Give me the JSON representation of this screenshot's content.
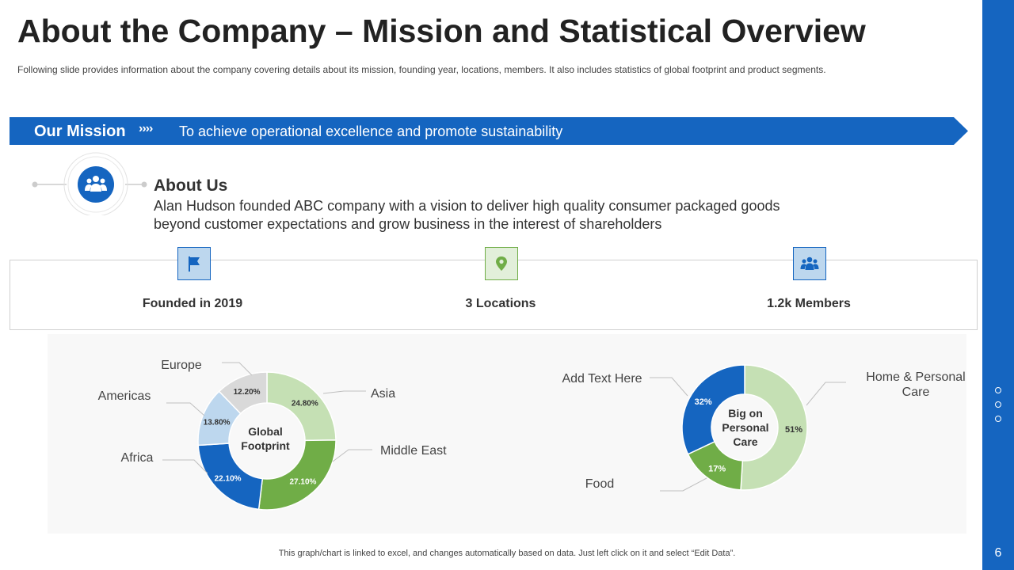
{
  "header": {
    "title": "About the Company – Mission and Statistical Overview",
    "subtitle": "Following slide provides information about the company covering details about its mission, founding year, locations, members. It also includes statistics of global footprint and product segments."
  },
  "mission": {
    "label": "Our Mission",
    "chevrons": "››››",
    "text": "To achieve operational excellence and promote sustainability"
  },
  "about": {
    "title": "About Us",
    "body": "Alan Hudson founded ABC company with a vision to deliver high quality consumer packaged goods beyond customer expectations and grow business in the interest of shareholders",
    "icon": "people-icon"
  },
  "stats": [
    {
      "label": "Founded in 2019",
      "icon": "flag-icon"
    },
    {
      "label": "3 Locations",
      "icon": "location-pin-icon"
    },
    {
      "label": "1.2k Members",
      "icon": "people-icon"
    }
  ],
  "colors": {
    "brand_blue": "#1565c0",
    "light_green": "#c5e0b4",
    "green": "#70ad47",
    "light_blue": "#bdd7ee",
    "grey": "#d9d9d9"
  },
  "chart_data": [
    {
      "type": "donut",
      "center_label": [
        "Global",
        "Footprint"
      ],
      "slices": [
        {
          "name": "Asia",
          "value": 24.8,
          "label": "24.80%",
          "color": "#c5e0b4",
          "text_color": "#333333"
        },
        {
          "name": "Middle East",
          "value": 27.1,
          "label": "27.10%",
          "color": "#70ad47",
          "text_color": "#ffffff"
        },
        {
          "name": "Africa",
          "value": 22.1,
          "label": "22.10%",
          "color": "#1565c0",
          "text_color": "#ffffff"
        },
        {
          "name": "Americas",
          "value": 13.8,
          "label": "13.80%",
          "color": "#bdd7ee",
          "text_color": "#333333"
        },
        {
          "name": "Europe",
          "value": 12.2,
          "label": "12.20%",
          "color": "#d9d9d9",
          "text_color": "#333333"
        }
      ]
    },
    {
      "type": "donut",
      "center_label": [
        "Big on",
        "Personal",
        "Care"
      ],
      "slices": [
        {
          "name": "Home & Personal Care",
          "value": 51,
          "label": "51%",
          "color": "#c5e0b4",
          "text_color": "#333333"
        },
        {
          "name": "Food",
          "value": 17,
          "label": "17%",
          "color": "#70ad47",
          "text_color": "#ffffff"
        },
        {
          "name": "Add Text Here",
          "value": 32,
          "label": "32%",
          "color": "#1565c0",
          "text_color": "#ffffff"
        }
      ]
    }
  ],
  "footnote": "This graph/chart is linked to excel, and changes automatically based on data. Just left click on it and select “Edit Data”.",
  "page_number": "6"
}
